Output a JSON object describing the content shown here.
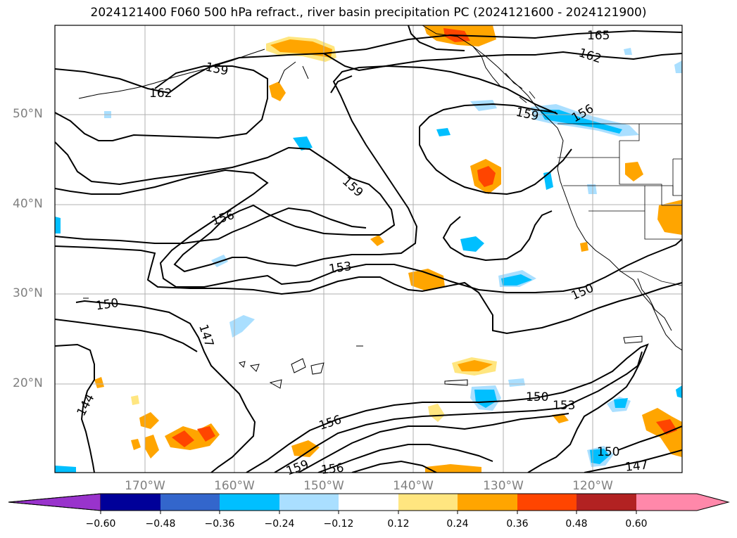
{
  "title": "2024121400 F060 500 hPa refract., river basin precipitation PC (2024121600 - 2024121900)",
  "lat_labels": [
    "50°N",
    "40°N",
    "30°N",
    "20°N"
  ],
  "lon_labels": [
    "170°W",
    "160°W",
    "150°W",
    "140°W",
    "130°W",
    "120°W"
  ],
  "contour_labels": [
    "165",
    "162",
    "162",
    "159",
    "159",
    "156",
    "159",
    "156",
    "153",
    "150",
    "150",
    "147",
    "144",
    "150",
    "153",
    "156",
    "159",
    "156",
    "150",
    "147"
  ],
  "colorbar": {
    "ticks": [
      "−0.60",
      "−0.48",
      "−0.36",
      "−0.24",
      "−0.12",
      "0.12",
      "0.24",
      "0.36",
      "0.48",
      "0.60"
    ],
    "colors": [
      "#9933cc",
      "#000099",
      "#3366cc",
      "#00bfff",
      "#aadfff",
      "#ffffff",
      "#ffe680",
      "#ffa500",
      "#ff4500",
      "#b22222",
      "#ff88aa",
      "#ff88aa"
    ]
  }
}
